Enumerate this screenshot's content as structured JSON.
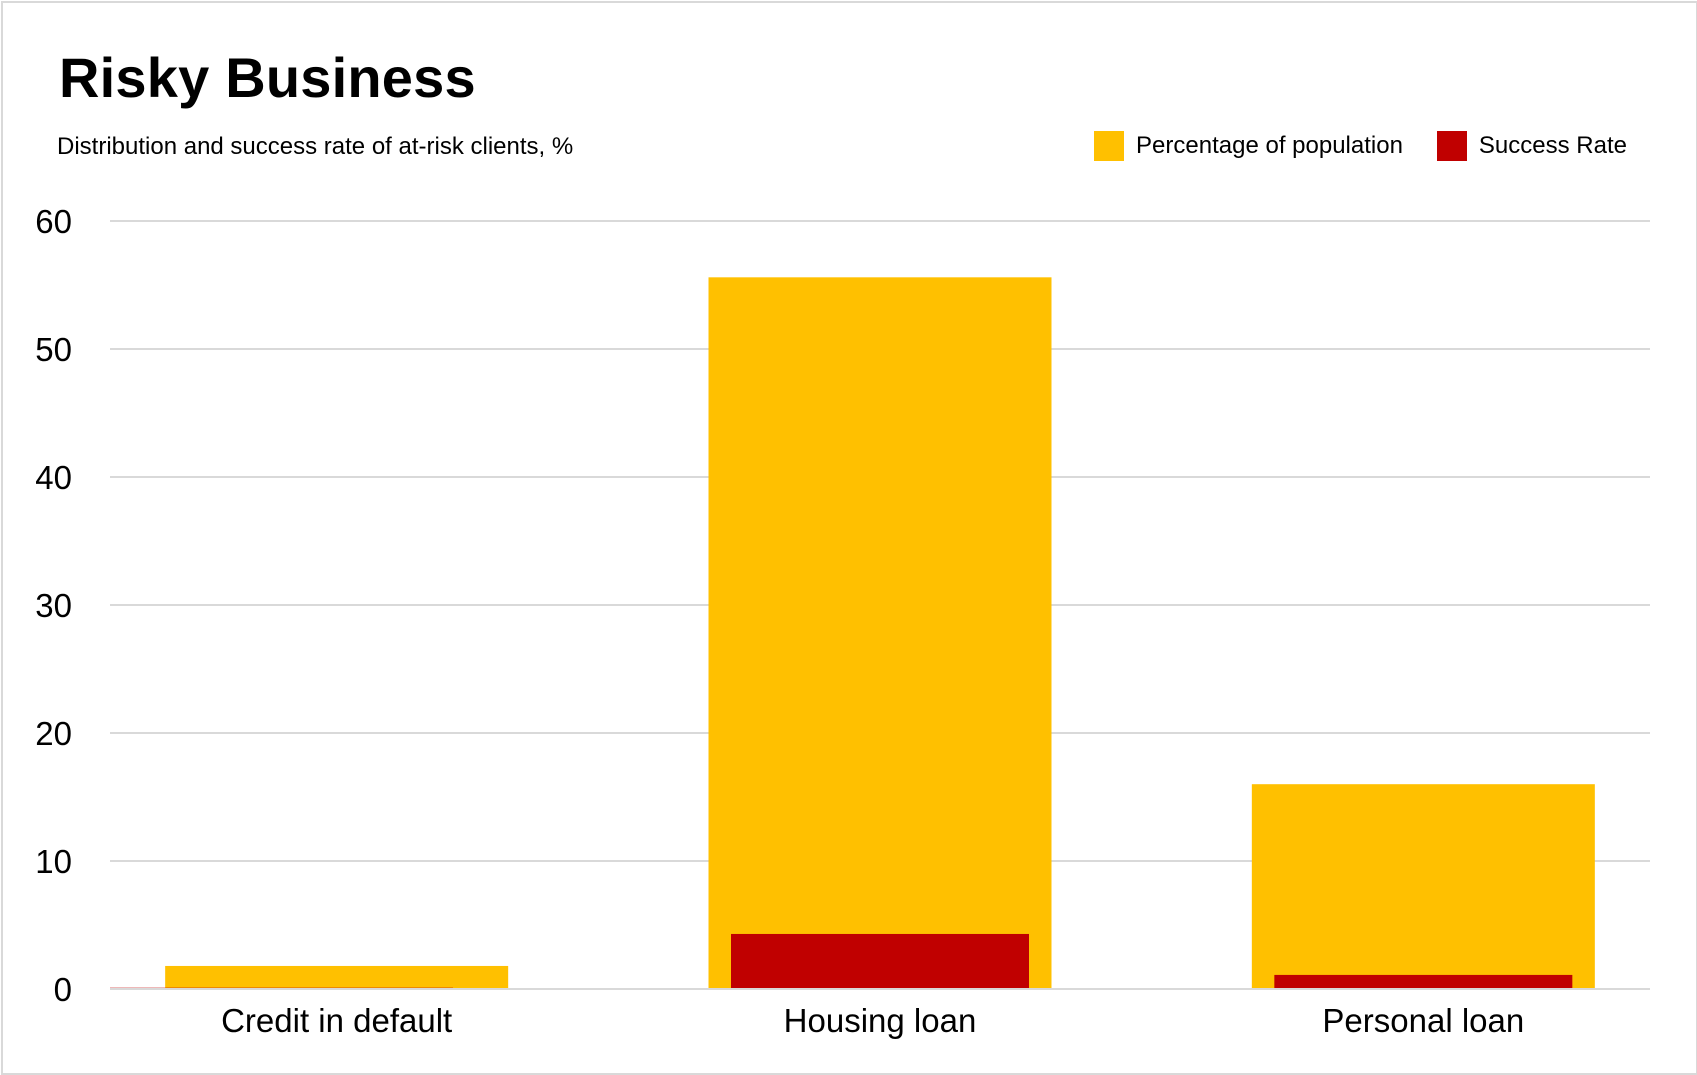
{
  "chart_data": {
    "type": "bar",
    "title": "Risky Business",
    "subtitle": "Distribution and success rate of at-risk clients, %",
    "categories": [
      "Credit in default",
      "Housing loan",
      "Personal loan"
    ],
    "series": [
      {
        "name": "Percentage of population",
        "values": [
          1.8,
          55.6,
          16.0
        ],
        "color": "#FFC000"
      },
      {
        "name": "Success Rate",
        "values": [
          0.1,
          4.3,
          1.1
        ],
        "color": "#C00000"
      }
    ],
    "yticks": [
      0,
      10,
      20,
      30,
      40,
      50,
      60
    ],
    "ylim": [
      0,
      60
    ],
    "grid": true,
    "gridColor": "#d9d9d9",
    "legend": "top-right"
  }
}
